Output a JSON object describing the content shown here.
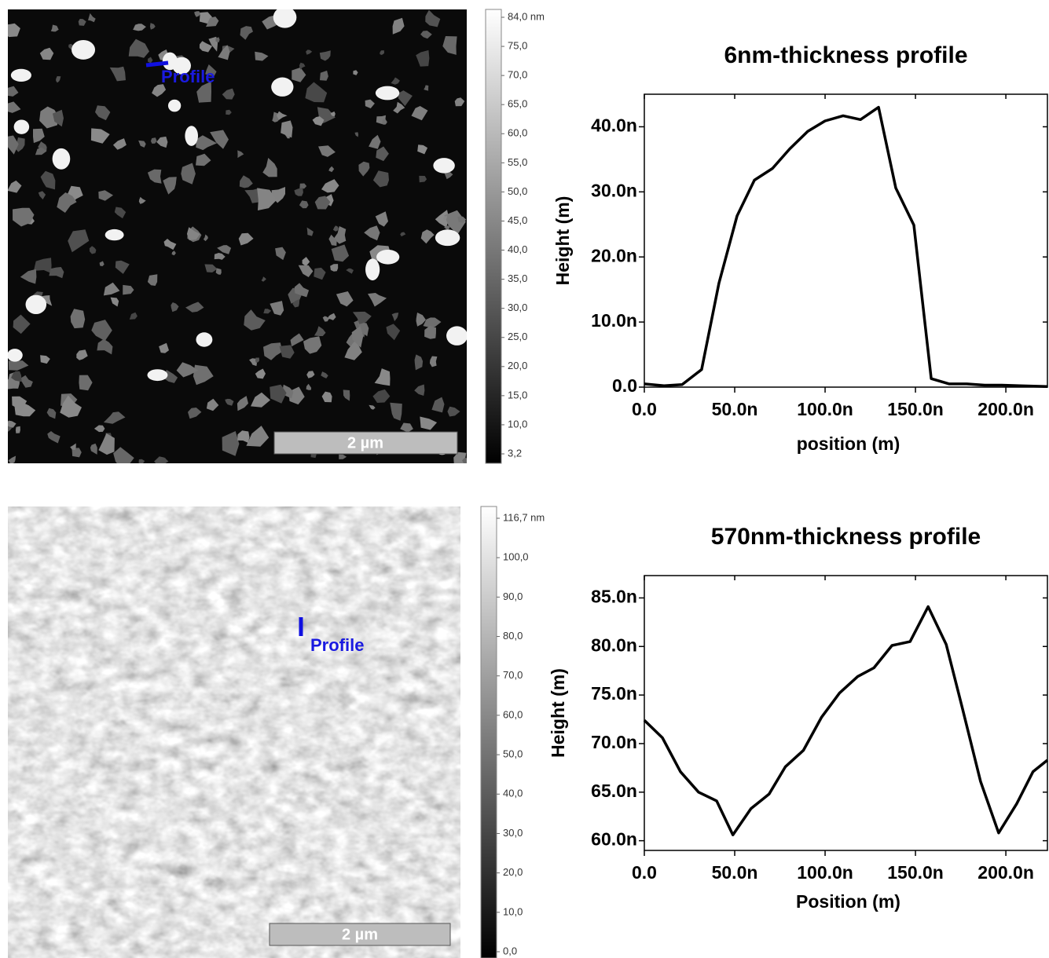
{
  "chart_data": [
    {
      "type": "line",
      "title": "6nm-thickness profile",
      "xlabel": "position (m)",
      "ylabel": "Height (m)",
      "color": "#000000",
      "x": [
        0,
        1.09e-08,
        2.09e-08,
        3.17e-08,
        4.13e-08,
        5.13e-08,
        6.09e-08,
        7.09e-08,
        8.04e-08,
        9.04e-08,
        1e-07,
        1.1e-07,
        1.196e-07,
        1.296e-07,
        1.391e-07,
        1.491e-07,
        1.587e-07,
        1.687e-07,
        1.783e-07,
        1.883e-07,
        1.978e-07,
        2.078e-07,
        2.23e-07
      ],
      "values": [
        5e-10,
        2e-10,
        4e-10,
        2.7e-09,
        1.6e-08,
        2.63e-08,
        3.18e-08,
        3.36e-08,
        3.66e-08,
        3.93e-08,
        4.09e-08,
        4.17e-08,
        4.11e-08,
        4.3e-08,
        3.06e-08,
        2.49e-08,
        1.3e-09,
        5e-10,
        5e-10,
        3e-10,
        3e-10,
        2e-10,
        1e-10
      ],
      "xlim": [
        0,
        2.23e-07
      ],
      "ylim": [
        0,
        4.5e-08
      ],
      "xticks": [
        {
          "value": 0,
          "label": "0.0"
        },
        {
          "value": 5e-08,
          "label": "50.0n"
        },
        {
          "value": 1e-07,
          "label": "100.0n"
        },
        {
          "value": 1.5e-07,
          "label": "150.0n"
        },
        {
          "value": 2e-07,
          "label": "200.0n"
        }
      ],
      "yticks": [
        {
          "value": 0,
          "label": "0.0"
        },
        {
          "value": 1e-08,
          "label": "10.0n"
        },
        {
          "value": 2e-08,
          "label": "20.0n"
        },
        {
          "value": 3e-08,
          "label": "30.0n"
        },
        {
          "value": 4e-08,
          "label": "40.0n"
        }
      ]
    },
    {
      "type": "line",
      "title": "570nm-thickness profile",
      "xlabel": "Position (m)",
      "ylabel": "Height (m)",
      "color": "#000000",
      "x": [
        0,
        1e-08,
        2e-08,
        3e-08,
        4e-08,
        4.9e-08,
        5.9e-08,
        6.9e-08,
        7.8e-08,
        8.8e-08,
        9.8e-08,
        1.08e-07,
        1.18e-07,
        1.27e-07,
        1.37e-07,
        1.47e-07,
        1.57e-07,
        1.67e-07,
        1.76e-07,
        1.86e-07,
        1.96e-07,
        2.06e-07,
        2.15e-07,
        2.23e-07
      ],
      "values": [
        7.24e-08,
        7.06e-08,
        6.71e-08,
        6.5e-08,
        6.41e-08,
        6.06e-08,
        6.33e-08,
        6.48e-08,
        6.76e-08,
        6.93e-08,
        7.27e-08,
        7.52e-08,
        7.69e-08,
        7.78e-08,
        8.01e-08,
        8.05e-08,
        8.41e-08,
        8.02e-08,
        7.36e-08,
        6.61e-08,
        6.08e-08,
        6.38e-08,
        6.71e-08,
        6.83e-08
      ],
      "xlim": [
        0,
        2.23e-07
      ],
      "ylim": [
        5.9e-08,
        8.73e-08
      ],
      "xticks": [
        {
          "value": 0,
          "label": "0.0"
        },
        {
          "value": 5e-08,
          "label": "50.0n"
        },
        {
          "value": 1e-07,
          "label": "100.0n"
        },
        {
          "value": 1.5e-07,
          "label": "150.0n"
        },
        {
          "value": 2e-07,
          "label": "200.0n"
        }
      ],
      "yticks": [
        {
          "value": 6e-08,
          "label": "60.0n"
        },
        {
          "value": 6.5e-08,
          "label": "65.0n"
        },
        {
          "value": 7e-08,
          "label": "70.0n"
        },
        {
          "value": 7.5e-08,
          "label": "75.0n"
        },
        {
          "value": 8e-08,
          "label": "80.0n"
        },
        {
          "value": 8.5e-08,
          "label": "85.0n"
        }
      ]
    }
  ],
  "images": [
    {
      "marker": "Profile",
      "scale_bar": "2 µm",
      "colorbar_labels": [
        "84,0 nm",
        "75,0",
        "70,0",
        "65,0",
        "60,0",
        "55,0",
        "50,0",
        "45,0",
        "40,0",
        "35,0",
        "30,0",
        "25,0",
        "20,0",
        "15,0",
        "10,0",
        "3,2"
      ]
    },
    {
      "marker": "Profile",
      "scale_bar": "2 µm",
      "colorbar_labels": [
        "116,7 nm",
        "100,0",
        "90,0",
        "80,0",
        "70,0",
        "60,0",
        "50,0",
        "40,0",
        "30,0",
        "20,0",
        "10,0",
        "0,0"
      ]
    }
  ]
}
